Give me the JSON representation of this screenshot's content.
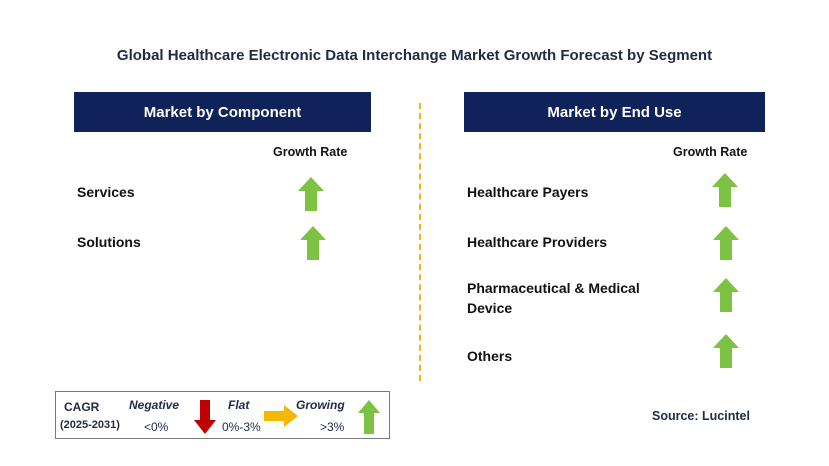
{
  "title": "Global Healthcare Electronic Data Interchange Market Growth Forecast by Segment",
  "left_panel": {
    "header": "Market by Component",
    "growth_label": "Growth Rate",
    "items": [
      {
        "label": "Services",
        "trend": "growing"
      },
      {
        "label": "Solutions",
        "trend": "growing"
      }
    ]
  },
  "right_panel": {
    "header": "Market by End Use",
    "growth_label": "Growth Rate",
    "items": [
      {
        "label": "Healthcare Payers",
        "trend": "growing"
      },
      {
        "label": "Healthcare Providers",
        "trend": "growing"
      },
      {
        "label": "Pharmaceutical & Medical Device",
        "trend": "growing"
      },
      {
        "label": "Others",
        "trend": "growing"
      }
    ]
  },
  "legend": {
    "cagr": "CAGR",
    "period": "(2025-2031)",
    "negative_label": "Negative",
    "negative_range": "<0%",
    "flat_label": "Flat",
    "flat_range": "0%-3%",
    "growing_label": "Growing",
    "growing_range": ">3%"
  },
  "source": "Source: Lucintel",
  "colors": {
    "header_bg": "#0f2259",
    "growing": "#7dc242",
    "negative": "#c00000",
    "flat": "#f5b800",
    "divider": "#f2b21c"
  },
  "icons": {
    "growing": "green-up-arrow-icon",
    "negative": "red-down-arrow-icon",
    "flat": "yellow-right-arrow-icon"
  }
}
